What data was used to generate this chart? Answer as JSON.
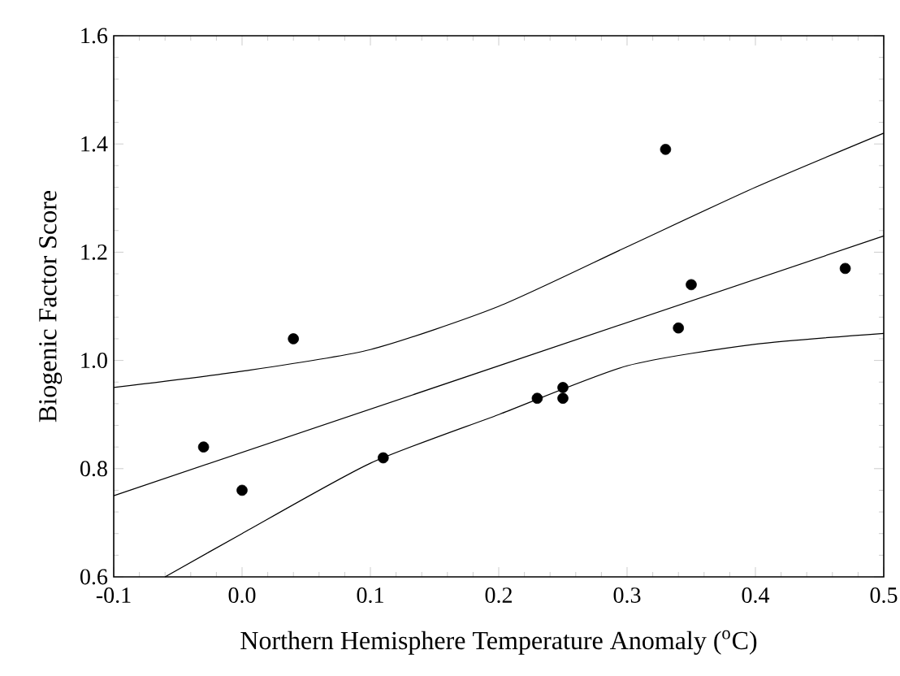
{
  "chart_data": {
    "type": "scatter",
    "xlabel": "Northern Hemisphere Temperature Anomaly ($^{o}$C)",
    "ylabel": "Biogenic Factor Score",
    "xlim": [
      -0.1,
      0.5
    ],
    "ylim": [
      0.6,
      1.6
    ],
    "xticks": [
      {
        "value": -0.1,
        "label": "-0.1"
      },
      {
        "value": 0.0,
        "label": "0.0"
      },
      {
        "value": 0.1,
        "label": "0.1"
      },
      {
        "value": 0.2,
        "label": "0.2"
      },
      {
        "value": 0.3,
        "label": "0.3"
      },
      {
        "value": 0.4,
        "label": "0.4"
      },
      {
        "value": 0.5,
        "label": "0.5"
      }
    ],
    "yticks": [
      {
        "value": 0.6,
        "label": "0.6"
      },
      {
        "value": 0.8,
        "label": "0.8"
      },
      {
        "value": 1.0,
        "label": "1.0"
      },
      {
        "value": 1.2,
        "label": "1.2"
      },
      {
        "value": 1.4,
        "label": "1.4"
      },
      {
        "value": 1.6,
        "label": "1.6"
      }
    ],
    "grid": false,
    "series": [
      {
        "marker": "circle",
        "color": "#000000",
        "x": [
          -0.03,
          0.0,
          0.04,
          0.11,
          0.23,
          0.25,
          0.25,
          0.33,
          0.34,
          0.35,
          0.47
        ],
        "values": [
          0.84,
          0.76,
          1.04,
          0.82,
          0.93,
          0.95,
          0.93,
          1.39,
          1.06,
          1.14,
          1.17
        ]
      },
      {
        "type": "line",
        "color": "#000000",
        "marker": "none",
        "line_style": "solid",
        "x": [
          -0.1,
          0.5
        ],
        "values": [
          0.75,
          1.23
        ]
      },
      {
        "type": "line",
        "color": "#000000",
        "marker": "none",
        "line_style": "solid",
        "x": [
          -0.1,
          0.0,
          0.1,
          0.2,
          0.3,
          0.4,
          0.5
        ],
        "values": [
          0.95,
          0.98,
          1.02,
          1.1,
          1.21,
          1.32,
          1.42
        ]
      },
      {
        "type": "line",
        "color": "#000000",
        "marker": "none",
        "line_style": "solid",
        "x": [
          -0.06,
          0.0,
          0.1,
          0.2,
          0.3,
          0.4,
          0.5
        ],
        "values": [
          0.6,
          0.68,
          0.81,
          0.9,
          0.99,
          1.03,
          1.05
        ]
      }
    ]
  }
}
